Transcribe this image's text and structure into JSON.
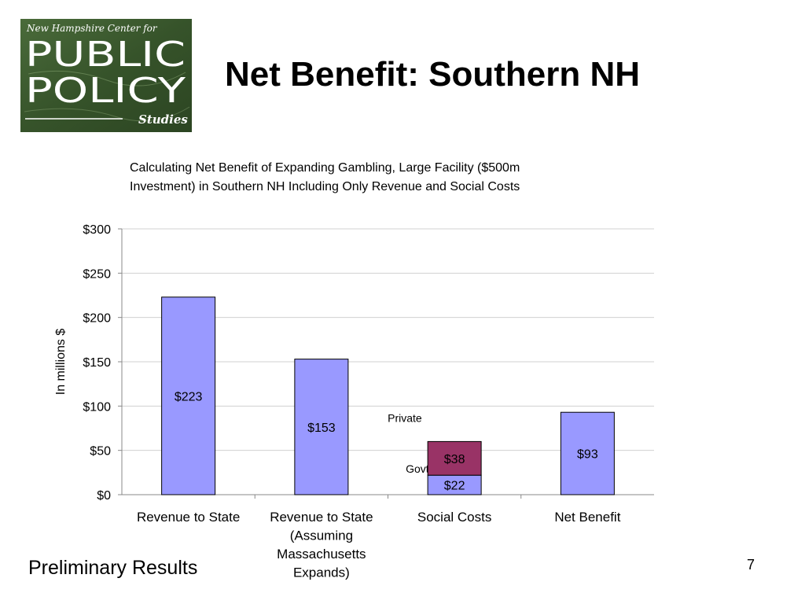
{
  "logo": {
    "line1": "New Hampshire Center for",
    "line2": "PUBLIC",
    "line3": "POLICY",
    "line4": "Studies",
    "color": "#3d5a2e"
  },
  "slide_title": "Net Benefit:  Southern NH",
  "footer_note": "Preliminary Results",
  "page_number": "7",
  "chart_data": {
    "type": "bar",
    "title_lines": [
      "Calculating Net Benefit of Expanding Gambling, Large Facility ($500m",
      "Investment) in Southern NH Including Only Revenue and Social Costs"
    ],
    "ylabel": "In millions $",
    "ylim": [
      0,
      300
    ],
    "yticks": [
      {
        "value": 0,
        "label": "$0"
      },
      {
        "value": 50,
        "label": "$50"
      },
      {
        "value": 100,
        "label": "$100"
      },
      {
        "value": 150,
        "label": "$150"
      },
      {
        "value": 200,
        "label": "$200"
      },
      {
        "value": 250,
        "label": "$250"
      },
      {
        "value": 300,
        "label": "$300"
      }
    ],
    "grid": true,
    "categories": [
      [
        "Revenue to State"
      ],
      [
        "Revenue to State",
        "(Assuming",
        "Massachusetts",
        "Expands)"
      ],
      [
        "Social Costs"
      ],
      [
        "Net Benefit"
      ]
    ],
    "bars": [
      {
        "segments": [
          {
            "value": 223,
            "label": "$223",
            "color": "#9999ff"
          }
        ]
      },
      {
        "segments": [
          {
            "value": 153,
            "label": "$153",
            "color": "#9999ff"
          }
        ]
      },
      {
        "segments": [
          {
            "value": 22,
            "label": "$22",
            "color": "#9999ff",
            "annotation": "Govt"
          },
          {
            "value": 38,
            "label": "$38",
            "color": "#993366",
            "annotation": "Private"
          }
        ]
      },
      {
        "segments": [
          {
            "value": 93,
            "label": "$93",
            "color": "#9999ff"
          }
        ]
      }
    ]
  }
}
